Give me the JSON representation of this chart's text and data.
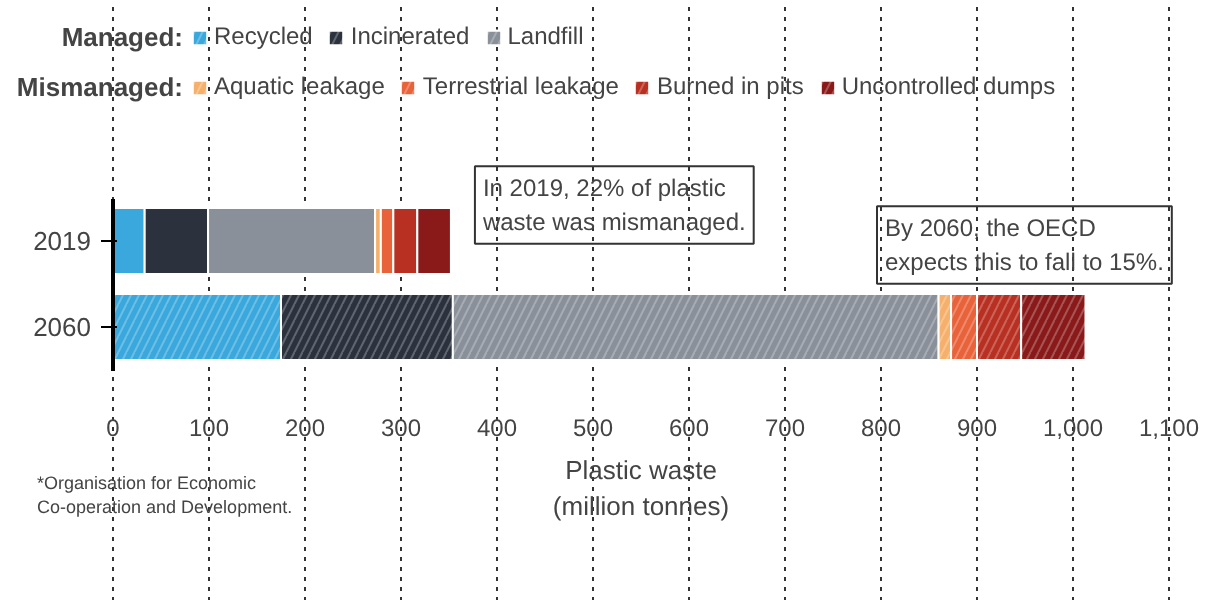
{
  "chart_data": {
    "type": "bar",
    "orientation": "horizontal",
    "stacked": true,
    "categories": [
      "2019",
      "2060"
    ],
    "series": [
      {
        "name": "Recycled",
        "color": "#3aa8dc",
        "values": [
          33,
          175
        ]
      },
      {
        "name": "Incinerated",
        "color": "#2b323d",
        "values": [
          66,
          179
        ]
      },
      {
        "name": "Landfill",
        "color": "#8a9099",
        "values": [
          174,
          506
        ]
      },
      {
        "name": "Aquatic leakage",
        "color": "#f5b06b",
        "values": [
          6,
          13
        ]
      },
      {
        "name": "Terrestrial leakage",
        "color": "#e8623a",
        "values": [
          13,
          27
        ]
      },
      {
        "name": "Burned in pits",
        "color": "#b83021",
        "values": [
          25,
          46
        ]
      },
      {
        "name": "Uncontrolled dumps",
        "color": "#8a1a1a",
        "values": [
          35,
          67
        ]
      }
    ],
    "xlim": [
      0,
      1100
    ],
    "xticks": [
      0,
      100,
      200,
      300,
      400,
      500,
      600,
      700,
      800,
      900,
      {
        "value": 1000,
        "label": "1,000"
      },
      {
        "value": 1100,
        "label": "1,100"
      }
    ],
    "xlabel": "Plastic waste\n(million tonnes)",
    "grid": "x",
    "legend": "top",
    "annotations": [
      "Managed:",
      "Mismanaged:",
      {
        "text": "In 2019, 22% of plastic\nwaste was mismanaged.",
        "x": 352,
        "y": "2019"
      },
      "By 2060, the OECD\nexpects this to fall to 15%.",
      "*Organisation for Economic\nCo-operation and Development."
    ]
  }
}
